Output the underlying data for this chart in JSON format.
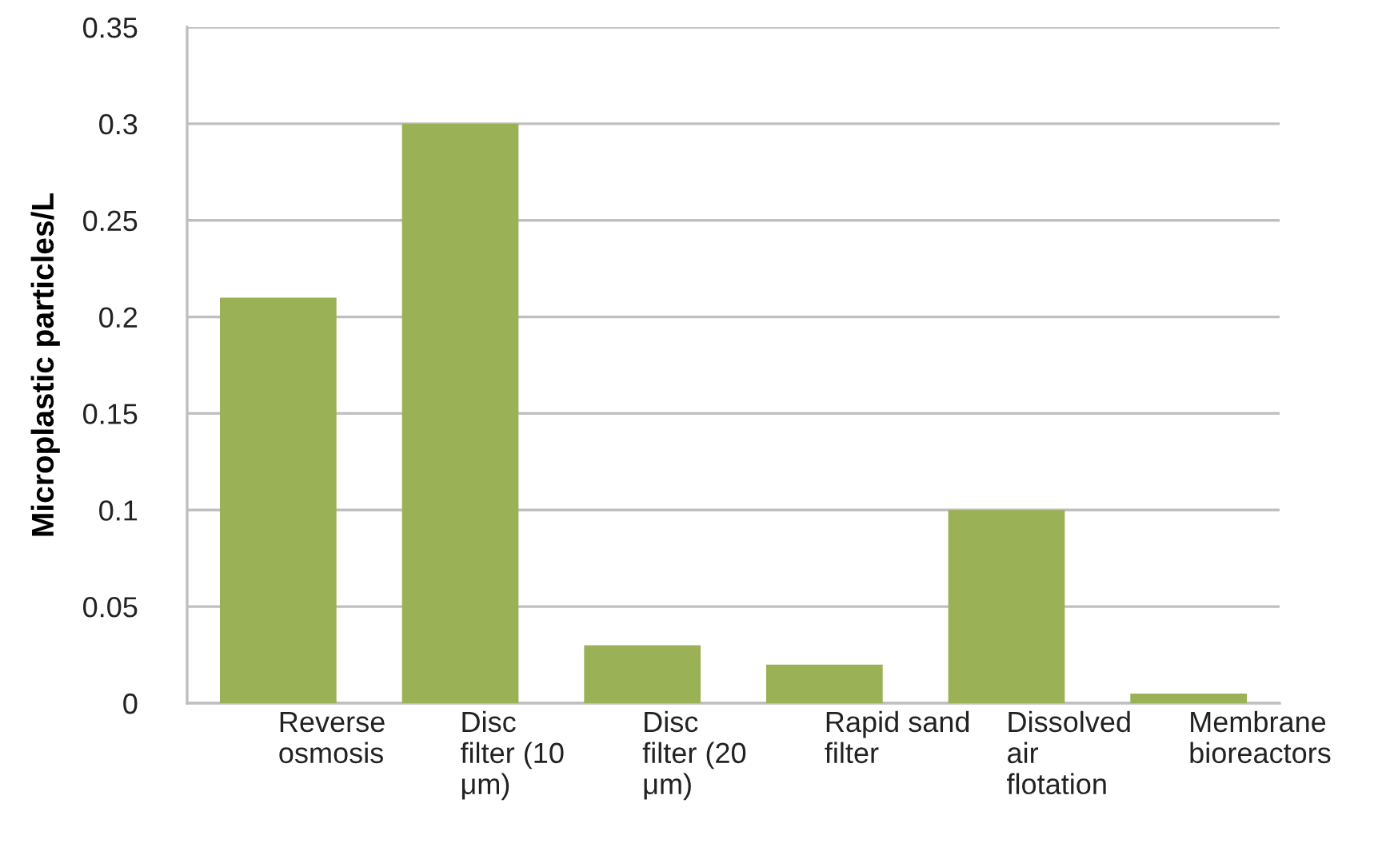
{
  "chart_data": {
    "type": "bar",
    "ylabel": "Microplastic particles/L",
    "categories": [
      "Reverse osmosis",
      "Disc filter (10 μm)",
      "Disc filter (20 μm)",
      "Rapid sand filter",
      "Dissolved air flotation",
      "Membrane bioreactors"
    ],
    "values": [
      0.21,
      0.3,
      0.03,
      0.02,
      0.1,
      0.005
    ],
    "color": "#9bb155",
    "ylim": [
      0,
      0.35
    ],
    "yticks": [
      0,
      0.05,
      0.1,
      0.15,
      0.2,
      0.25,
      0.3,
      0.35
    ],
    "grid": "y"
  }
}
